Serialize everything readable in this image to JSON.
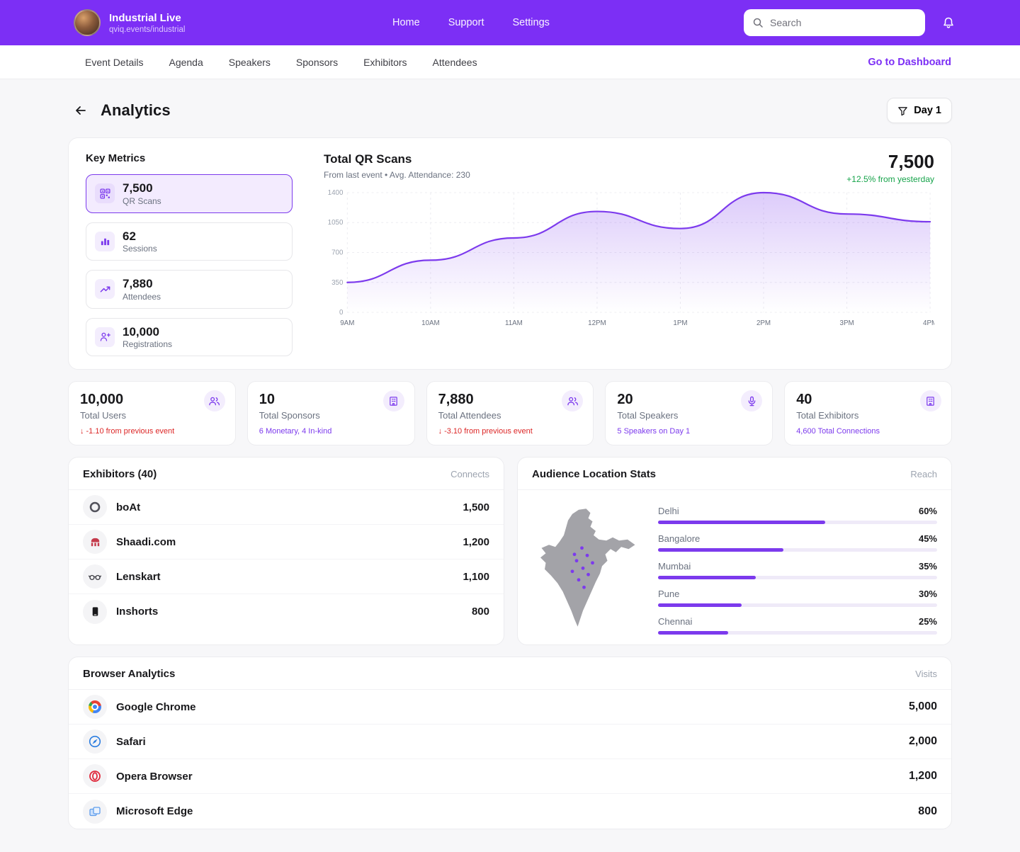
{
  "colors": {
    "accent": "#7C2FF5",
    "chart_line": "#7C3AED",
    "negative": "#DC2626",
    "positive": "#16A34A",
    "map_gray": "#A3A3A8"
  },
  "header": {
    "title": "Industrial Live",
    "subtitle": "qviq.events/industrial",
    "nav": [
      "Home",
      "Support",
      "Settings"
    ],
    "search_placeholder": "Search"
  },
  "subnav": {
    "tabs": [
      "Event Details",
      "Agenda",
      "Speakers",
      "Sponsors",
      "Exhibitors",
      "Attendees"
    ],
    "dashboard_link": "Go to Dashboard"
  },
  "page": {
    "title": "Analytics",
    "filter_label": "Day 1"
  },
  "key_metrics": {
    "title": "Key Metrics",
    "items": [
      {
        "value": "7,500",
        "label": "QR Scans",
        "icon": "qr-icon",
        "selected": true
      },
      {
        "value": "62",
        "label": "Sessions",
        "icon": "bar-chart-icon",
        "selected": false
      },
      {
        "value": "7,880",
        "label": "Attendees",
        "icon": "trend-up-icon",
        "selected": false
      },
      {
        "value": "10,000",
        "label": "Registrations",
        "icon": "person-add-icon",
        "selected": false
      }
    ]
  },
  "chart_data": {
    "type": "area",
    "title": "Total QR Scans",
    "subtitle": "From last event • Avg. Attendance: 230",
    "total": "7,500",
    "delta": "+12.5% from yesterday",
    "x": [
      "9AM",
      "10AM",
      "11AM",
      "12PM",
      "1PM",
      "2PM",
      "3PM",
      "4PM"
    ],
    "values": [
      350,
      610,
      870,
      1180,
      980,
      1400,
      1150,
      1060
    ],
    "y_ticks": [
      0,
      350,
      700,
      1050,
      1400
    ],
    "ylim": [
      0,
      1400
    ],
    "grid": true,
    "legend": false,
    "line_color": "#7C3AED"
  },
  "stats": [
    {
      "value": "10,000",
      "label": "Total Users",
      "note": "-1.10 from previous event",
      "note_icon": "↓",
      "note_type": "negative",
      "icon": "users-icon"
    },
    {
      "value": "10",
      "label": "Total Sponsors",
      "note": "6 Monetary, 4 In-kind",
      "note_type": "accent",
      "icon": "building-icon"
    },
    {
      "value": "7,880",
      "label": "Total Attendees",
      "note": "-3.10 from previous event",
      "note_icon": "↓",
      "note_type": "negative",
      "icon": "users-icon"
    },
    {
      "value": "20",
      "label": "Total Speakers",
      "note": "5 Speakers on Day 1",
      "note_type": "accent",
      "icon": "mic-icon"
    },
    {
      "value": "40",
      "label": "Total Exhibitors",
      "note": "4,600 Total Connections",
      "note_type": "accent",
      "icon": "building-icon"
    }
  ],
  "exhibitors": {
    "title": "Exhibitors (40)",
    "metric_label": "Connects",
    "rows": [
      {
        "name": "boAt",
        "value": "1,500",
        "icon": "boat-logo"
      },
      {
        "name": "Shaadi.com",
        "value": "1,200",
        "icon": "shaadi-logo"
      },
      {
        "name": "Lenskart",
        "value": "1,100",
        "icon": "lenskart-logo"
      },
      {
        "name": "Inshorts",
        "value": "800",
        "icon": "inshorts-logo"
      }
    ]
  },
  "audience": {
    "title": "Audience Location Stats",
    "metric_label": "Reach",
    "locations": [
      {
        "city": "Delhi",
        "pct": 60,
        "pct_label": "60%"
      },
      {
        "city": "Bangalore",
        "pct": 45,
        "pct_label": "45%"
      },
      {
        "city": "Mumbai",
        "pct": 35,
        "pct_label": "35%"
      },
      {
        "city": "Pune",
        "pct": 30,
        "pct_label": "30%"
      },
      {
        "city": "Chennai",
        "pct": 25,
        "pct_label": "25%"
      }
    ]
  },
  "browsers": {
    "title": "Browser Analytics",
    "metric_label": "Visits",
    "rows": [
      {
        "name": "Google Chrome",
        "value": "5,000",
        "icon": "chrome-icon"
      },
      {
        "name": "Safari",
        "value": "2,000",
        "icon": "safari-icon"
      },
      {
        "name": "Opera Browser",
        "value": "1,200",
        "icon": "opera-icon"
      },
      {
        "name": "Microsoft Edge",
        "value": "800",
        "icon": "edge-icon"
      }
    ]
  }
}
